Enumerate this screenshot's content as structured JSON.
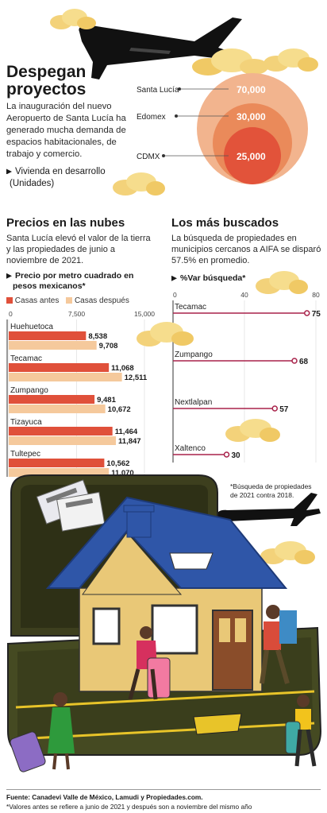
{
  "header": {
    "title_line1": "Despegan",
    "title_line2": "proyectos",
    "intro": "La inauguración del nuevo Aeropuerto de Santa Lucía ha generado mucha demanda de espacios habitacionales, de trabajo y comercio.",
    "legend_line1": "Vivienda en desarrollo",
    "legend_line2": "(Unidades)"
  },
  "bubbles": {
    "items": [
      {
        "label": "Santa Lucía",
        "value": 70000,
        "value_text": "70,000"
      },
      {
        "label": "Edomex",
        "value": 30000,
        "value_text": "30,000"
      },
      {
        "label": "CDMX",
        "value": 25000,
        "value_text": "25,000"
      }
    ],
    "colors": {
      "outer": "#f2b48e",
      "mid": "#ea8a5a",
      "inner": "#e2533a",
      "value_bg": "#d9342b"
    }
  },
  "prices": {
    "title": "Precios en las nubes",
    "desc": "Santa Lucía elevó el valor de  la tierra y las propiedades de junio a noviembre de 2021.",
    "subtitle_line1": "Precio por metro cuadrado en",
    "subtitle_line2": "pesos mexicanos*",
    "legend_before": "Casas antes",
    "legend_after": "Casas después"
  },
  "searched": {
    "title": "Los más buscados",
    "desc": "La búsqueda de propiedades  en municipios cercanos a AIFA se disparó 57.5% en promedio.",
    "subtitle": "%Var búsqueda*",
    "footnote_line1": "*Búsqueda de propiedades",
    "footnote_line2": "de 2021 contra 2018."
  },
  "footer": {
    "source": "Fuente: Canadevi Valle de México, Lamudi y Propiedades.com.",
    "note": "*Valores antes se refiere a junio de 2021 y después son a noviembre del mismo año"
  },
  "chart_data": [
    {
      "type": "bar",
      "categories": [
        "Huehuetoca",
        "Tecamac",
        "Zumpango",
        "Tizayuca",
        "Tultepec"
      ],
      "series": [
        {
          "name": "Casas antes",
          "values": [
            8538,
            11068,
            9481,
            11464,
            10562
          ],
          "labels": [
            "8,538",
            "11,068",
            "9,481",
            "11,464",
            "10,562"
          ],
          "color": "#e0503a"
        },
        {
          "name": "Casas después",
          "values": [
            9708,
            12511,
            10672,
            11847,
            11070
          ],
          "labels": [
            "9,708",
            "12,511",
            "10,672",
            "11,847",
            "11,070"
          ],
          "color": "#f5c99c"
        }
      ],
      "ticks": [
        "0",
        "7,500",
        "15,000"
      ],
      "xlim": [
        0,
        15000
      ],
      "orientation": "horizontal"
    },
    {
      "type": "scatter",
      "categories": [
        "Tecamac",
        "Zumpango",
        "Nextlalpan",
        "Xaltenco"
      ],
      "values": [
        75,
        68,
        57,
        30
      ],
      "ticks": [
        "0",
        "40",
        "80"
      ],
      "xlim": [
        0,
        80
      ],
      "color": "#a8224a"
    }
  ]
}
